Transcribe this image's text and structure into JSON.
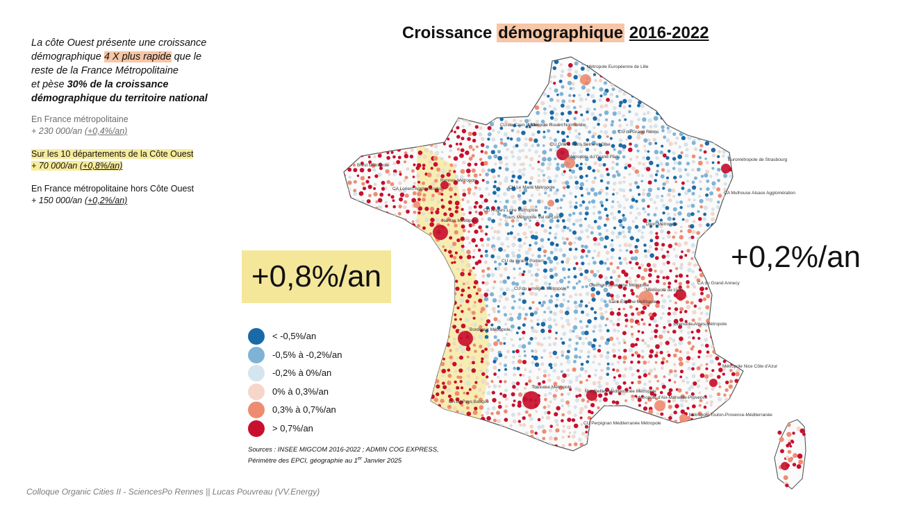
{
  "title": {
    "part1": "Croissance",
    "part2": "démographique",
    "part3": "2016-2022"
  },
  "intro": {
    "l1": "La côte Ouest présente une croissance",
    "l2a": "démographique ",
    "l2hl": "4 X plus rapide",
    "l2b": " que le",
    "l3": "reste de la France Métropolitaine",
    "l4a": "et pèse ",
    "l4b": "30% de la croissance",
    "l5": "démographique du territoire national"
  },
  "stats": [
    {
      "label": "En France métropolitaine",
      "value": "+ 230 000/an ",
      "rate": "(+0,4%/an)"
    },
    {
      "label": "Sur les 10 départements de la Côte Ouest",
      "value": "+ 70 000/an ",
      "rate": "(+0,8%/an)"
    },
    {
      "label": "En France métropolitaine hors Côte Ouest",
      "value": "+ 150 000/an ",
      "rate": "(+0,2%/an)"
    }
  ],
  "big_left": "+0,8%/an",
  "big_right": "+0,2%/an",
  "legend": [
    {
      "label": "< -0,5%/an",
      "color": "#1a6aa8"
    },
    {
      "label": "-0,5% à -0,2%/an",
      "color": "#7fb3d6"
    },
    {
      "label": "-0,2% à 0%/an",
      "color": "#d5e5ef"
    },
    {
      "label": "0% à 0,3%/an",
      "color": "#f7d6ca"
    },
    {
      "label": "0,3% à 0,7%/an",
      "color": "#ee8c72"
    },
    {
      "label": "> 0,7%/an",
      "color": "#c8102e"
    }
  ],
  "sources": {
    "l1": "Sources : INSEE MIGCOM 2016-2022 ; ADMIN COG EXPRESS,",
    "l2a": "Périmètre des EPCI, géographie au 1",
    "l2sup": "er",
    "l2b": " Janvier 2025"
  },
  "footer": "Colloque Organic Cities II - SciencesPo Rennes || Lucas Pouvreau (VV.Energy)",
  "map_labels": [
    "Métropole Européenne de Lille",
    "Métropole Rouen Normandie",
    "CU Grand Paris Seine et Oise",
    "Métropole du Grand Paris",
    "CU du Grand Reims",
    "Eurométropole de Strasbourg",
    "CA Mulhouse Alsace Agglomération",
    "Rennes Métropole",
    "Nantes Métropole",
    "Tours Métropole Val de Loire",
    "CU Le Mans Métropole",
    "CU Angers Loire Métropole",
    "CU de Caen la Mer",
    "Brest Métropole",
    "CA Lorient Agglomération",
    "CU du Grand Poitiers",
    "CU du Limoges Métropole",
    "Clermont Auvergne Métropole",
    "Saint-Étienne Métropole",
    "Métropole de Lyon",
    "Grenoble-Alpes-Métropole",
    "Bordeaux Métropole",
    "Toulouse Métropole",
    "Montpellier Méditerranée Métropole",
    "Métropole d'Aix-Marseille-Provence",
    "Métropole Toulon-Provence-Méditerranée",
    "Métropole Nice Côte d'Azur",
    "CU Perpignan Méditerranée Métropole",
    "CA du Pays Basque",
    "Dijon Métropole",
    "CA du Grand Annecy"
  ]
}
